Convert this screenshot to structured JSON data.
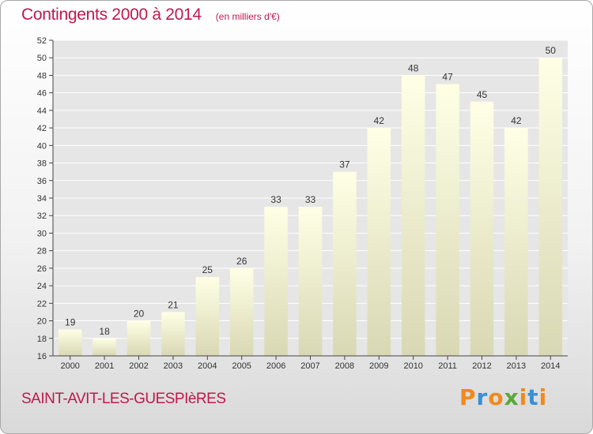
{
  "header": {
    "title": "Contingents 2000 à 2014",
    "subtitle": "(en milliers d'€)"
  },
  "footer": {
    "commune": "SAINT-AVIT-LES-GUESPIèRES",
    "logo_text": "Proxiti"
  },
  "colors": {
    "title": "#c0184e",
    "bar_top": "#ffffe6",
    "bar_bottom": "#d8d8b4",
    "grid": "#ffffff",
    "logo": [
      "#f08a1c",
      "#3a8fd6",
      "#f08a1c",
      "#5aa83c",
      "#f08a1c",
      "#3a8fd6",
      "#f08a1c"
    ]
  },
  "chart_data": {
    "type": "bar",
    "categories": [
      "2000",
      "2001",
      "2002",
      "2003",
      "2004",
      "2005",
      "2006",
      "2007",
      "2008",
      "2009",
      "2010",
      "2011",
      "2012",
      "2013",
      "2014"
    ],
    "values": [
      19,
      18,
      20,
      21,
      25,
      26,
      33,
      33,
      37,
      42,
      48,
      47,
      45,
      42,
      50
    ],
    "ylim": [
      16,
      52
    ],
    "yticks": [
      16,
      18,
      20,
      22,
      24,
      26,
      28,
      30,
      32,
      34,
      36,
      38,
      40,
      42,
      44,
      46,
      48,
      50,
      52
    ],
    "grid": true,
    "data_labels": true
  }
}
